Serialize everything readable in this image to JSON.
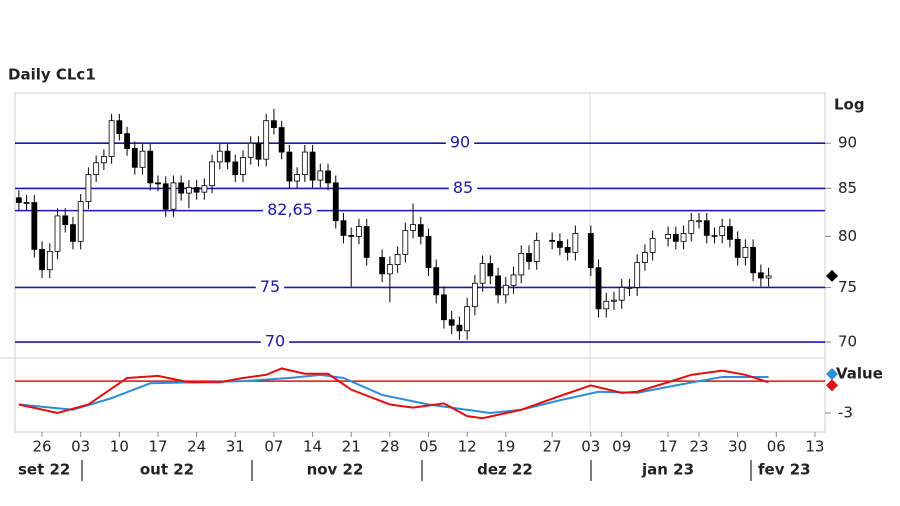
{
  "chart_data": [
    {
      "type": "candlestick",
      "title": "Daily CLc1",
      "scale_label": "Log",
      "log_scale": true,
      "x": [
        0,
        1,
        2,
        3,
        4,
        5,
        6,
        7,
        8,
        9,
        10,
        11,
        12,
        13,
        14,
        15,
        16,
        17,
        18,
        19,
        20,
        21,
        22,
        23,
        24,
        25,
        26,
        27,
        28,
        29,
        30,
        31,
        32,
        33,
        34,
        35,
        36,
        37,
        38,
        39,
        40,
        41,
        42,
        43,
        44,
        45,
        47,
        48,
        49,
        50,
        51,
        52,
        53,
        54,
        55,
        56,
        57,
        58,
        59,
        60,
        61,
        62,
        63,
        64,
        65,
        66,
        67,
        69,
        70,
        71,
        72,
        74,
        75,
        76,
        77,
        78,
        79,
        80,
        81,
        82,
        84,
        85,
        86,
        87,
        88,
        89,
        90,
        91,
        92,
        93,
        94,
        95,
        96,
        97
      ],
      "open": [
        84.0,
        83.5,
        83.5,
        78.7,
        76.7,
        78.5,
        82.1,
        81.2,
        79.5,
        83.6,
        86.5,
        87.8,
        88.5,
        92.6,
        91.1,
        89.4,
        87.3,
        89.1,
        85.6,
        85.5,
        82.8,
        85.6,
        84.5,
        85.1,
        84.6,
        85.3,
        87.9,
        89.1,
        87.9,
        86.5,
        88.4,
        90.0,
        88.2,
        92.6,
        91.8,
        89.0,
        85.8,
        86.5,
        89.0,
        85.9,
        86.9,
        85.6,
        81.6,
        80.1,
        80.0,
        81.0,
        77.9,
        76.3,
        77.2,
        78.2,
        80.6,
        81.2,
        80.0,
        76.9,
        74.3,
        72.0,
        71.5,
        71.0,
        73.2,
        75.4,
        77.3,
        76.1,
        74.3,
        75.2,
        76.2,
        78.3,
        77.5,
        79.6,
        79.5,
        78.9,
        78.4,
        80.3,
        76.9,
        73.0,
        73.7,
        73.8,
        75.0,
        75.0,
        77.4,
        78.4,
        79.8,
        80.2,
        79.5,
        80.3,
        81.6,
        81.6,
        80.1,
        80.1,
        81.0,
        79.7,
        77.9,
        78.9,
        76.4,
        75.9
      ],
      "high": [
        84.8,
        84.3,
        84.3,
        79.5,
        79.3,
        82.9,
        82.9,
        82.0,
        84.4,
        87.3,
        88.6,
        89.3,
        93.4,
        93.4,
        91.9,
        90.2,
        89.9,
        89.9,
        86.4,
        86.3,
        86.4,
        86.4,
        85.9,
        85.9,
        86.1,
        88.7,
        89.9,
        89.9,
        88.7,
        89.2,
        90.8,
        90.8,
        93.4,
        94.0,
        92.6,
        89.8,
        87.3,
        89.8,
        89.8,
        87.7,
        87.7,
        86.4,
        82.4,
        80.9,
        81.8,
        81.8,
        78.7,
        78.0,
        79.0,
        81.4,
        83.4,
        82.0,
        80.8,
        77.7,
        75.1,
        72.8,
        72.3,
        74.0,
        76.2,
        78.1,
        78.1,
        76.9,
        76.0,
        77.0,
        79.1,
        79.1,
        80.4,
        80.4,
        80.3,
        79.7,
        81.1,
        81.1,
        77.7,
        74.5,
        74.6,
        75.8,
        75.8,
        78.2,
        79.2,
        80.6,
        81.0,
        81.0,
        81.1,
        82.4,
        82.4,
        82.4,
        80.9,
        81.8,
        81.8,
        80.5,
        79.7,
        79.7,
        77.2,
        76.9
      ],
      "low": [
        82.7,
        82.7,
        77.9,
        75.9,
        75.9,
        77.7,
        80.4,
        78.7,
        78.7,
        82.8,
        85.7,
        87.0,
        87.7,
        90.3,
        88.6,
        86.5,
        86.5,
        84.8,
        84.7,
        82.0,
        82.0,
        83.7,
        82.9,
        83.8,
        83.8,
        84.5,
        87.1,
        87.1,
        85.7,
        85.7,
        87.6,
        87.4,
        87.4,
        91.0,
        88.2,
        85.0,
        85.0,
        85.7,
        85.1,
        85.1,
        84.8,
        80.8,
        79.3,
        75.1,
        79.2,
        77.1,
        75.5,
        73.6,
        76.4,
        77.4,
        79.8,
        79.2,
        76.1,
        73.5,
        71.2,
        70.7,
        70.2,
        70.2,
        72.4,
        74.6,
        75.3,
        73.5,
        73.5,
        74.4,
        75.4,
        76.7,
        76.7,
        78.7,
        78.1,
        77.6,
        77.6,
        76.1,
        72.2,
        72.2,
        72.9,
        73.0,
        74.2,
        74.2,
        76.6,
        77.6,
        79.0,
        78.7,
        78.7,
        79.5,
        80.8,
        79.3,
        79.3,
        79.3,
        78.9,
        77.1,
        77.1,
        75.6,
        75.1,
        75.1
      ],
      "close": [
        83.5,
        83.5,
        78.7,
        76.7,
        78.5,
        82.1,
        81.2,
        79.5,
        83.6,
        86.5,
        87.8,
        88.5,
        92.6,
        91.1,
        89.4,
        87.3,
        89.1,
        85.6,
        85.5,
        82.8,
        85.6,
        84.5,
        85.1,
        84.6,
        85.3,
        87.9,
        89.1,
        87.9,
        86.5,
        88.4,
        90.0,
        88.2,
        92.6,
        91.8,
        89.0,
        85.8,
        86.5,
        89.0,
        85.9,
        86.9,
        85.6,
        81.6,
        80.1,
        80.0,
        81.0,
        77.9,
        76.3,
        77.2,
        78.2,
        80.6,
        81.2,
        80.0,
        76.9,
        74.3,
        72.0,
        71.5,
        71.0,
        73.2,
        75.4,
        77.3,
        76.1,
        74.3,
        75.2,
        76.2,
        78.3,
        77.5,
        79.6,
        79.5,
        78.9,
        78.4,
        80.3,
        76.9,
        73.0,
        73.7,
        73.8,
        75.0,
        75.0,
        77.4,
        78.4,
        79.8,
        80.2,
        79.5,
        80.3,
        81.6,
        81.6,
        80.1,
        80.1,
        81.0,
        79.7,
        77.9,
        78.9,
        76.4,
        75.9,
        76.1
      ],
      "up_color": "#ffffff",
      "down_color": "#000000",
      "xlim": [
        -0.5,
        104.3
      ],
      "ylim": [
        68.6,
        95.9
      ],
      "yticks": [
        70,
        75,
        80,
        85,
        90
      ],
      "levels": [
        90,
        85,
        {
          "value": 82.65,
          "label": "82,65"
        },
        75,
        70
      ],
      "level_color": "#1a1aa8",
      "xticks": [
        {
          "value": 3,
          "label": "26"
        },
        {
          "value": 8,
          "label": "03"
        },
        {
          "value": 13,
          "label": "10"
        },
        {
          "value": 18,
          "label": "17"
        },
        {
          "value": 23,
          "label": "24"
        },
        {
          "value": 28,
          "label": "31"
        },
        {
          "value": 33,
          "label": "07"
        },
        {
          "value": 38,
          "label": "14"
        },
        {
          "value": 43,
          "label": "21"
        },
        {
          "value": 48,
          "label": "28"
        },
        {
          "value": 53,
          "label": "05"
        },
        {
          "value": 58,
          "label": "12"
        },
        {
          "value": 63,
          "label": "19"
        },
        {
          "value": 69,
          "label": "27"
        },
        {
          "value": 74,
          "label": "03"
        },
        {
          "value": 78,
          "label": "09"
        },
        {
          "value": 84,
          "label": "17"
        },
        {
          "value": 88,
          "label": "23"
        },
        {
          "value": 93,
          "label": "30"
        },
        {
          "value": 98,
          "label": "06"
        },
        {
          "value": 103,
          "label": "13"
        }
      ],
      "months": [
        "set 22",
        "out 22",
        "nov 22",
        "dez 22",
        "jan 23",
        "fev 23"
      ]
    },
    {
      "type": "line",
      "y_label": "Value",
      "xlim": [
        -0.5,
        104.3
      ],
      "ylim": [
        -4.8,
        2.0
      ],
      "yticks": [
        -3
      ],
      "reference": 0,
      "reference_color": "#e01010",
      "series": [
        {
          "color": "#2a8fd8",
          "x": [
            0,
            7,
            12,
            17,
            23,
            29,
            35,
            39,
            42,
            47,
            53,
            61,
            65,
            70,
            75,
            80,
            85,
            91,
            97
          ],
          "values": [
            -2.2,
            -2.7,
            -1.6,
            -0.2,
            -0.1,
            0,
            0.3,
            0.6,
            0.3,
            -1.3,
            -2.2,
            -3.0,
            -2.7,
            -1.8,
            -1.0,
            -1.1,
            -0.4,
            0.4,
            0.4
          ]
        },
        {
          "color": "#e01010",
          "x": [
            0,
            5,
            9,
            14,
            18,
            22,
            26,
            29,
            32,
            34,
            37,
            40,
            43,
            48,
            51,
            55,
            58,
            60,
            65,
            70,
            74,
            78,
            80,
            84,
            87,
            91,
            94,
            97
          ],
          "values": [
            -2.2,
            -3.0,
            -2.2,
            0.3,
            0.5,
            -0.1,
            -0.1,
            0.3,
            0.6,
            1.2,
            0.7,
            0.7,
            -0.8,
            -2.2,
            -2.5,
            -2.1,
            -3.3,
            -3.5,
            -2.7,
            -1.4,
            -0.4,
            -1.1,
            -1.0,
            -0.1,
            0.6,
            1.0,
            0.6,
            -0.1
          ]
        }
      ]
    }
  ]
}
